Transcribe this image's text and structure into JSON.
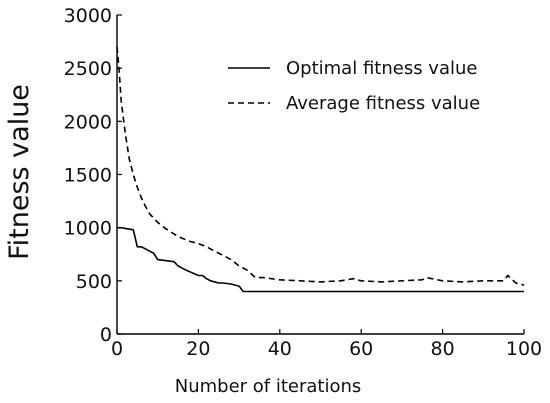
{
  "chart_data": {
    "type": "line",
    "xlabel": "Number of iterations",
    "ylabel": "Fitness value",
    "xlim": [
      0,
      100
    ],
    "ylim": [
      0,
      3000
    ],
    "xticks": [
      0,
      20,
      40,
      60,
      80,
      100
    ],
    "yticks": [
      0,
      500,
      1000,
      1500,
      2000,
      2500,
      3000
    ],
    "legend_position": "top-right",
    "grid": false,
    "series": [
      {
        "name": "Optimal fitness value",
        "style": "solid",
        "color": "#000000",
        "x": [
          0,
          1,
          4,
          5,
          6,
          7,
          9,
          10,
          14,
          15,
          16,
          17,
          20,
          21,
          22,
          23,
          25,
          26,
          28,
          29,
          30,
          31,
          100
        ],
        "y": [
          1000,
          1000,
          980,
          820,
          820,
          800,
          760,
          700,
          680,
          640,
          620,
          600,
          550,
          550,
          520,
          500,
          480,
          480,
          470,
          460,
          450,
          400,
          400
        ]
      },
      {
        "name": "Average fitness value",
        "style": "dashed",
        "color": "#000000",
        "x": [
          0,
          0.5,
          1,
          2,
          3,
          4,
          5,
          6,
          7,
          8,
          10,
          12,
          14,
          16,
          18,
          20,
          22,
          24,
          26,
          28,
          30,
          32,
          34,
          36,
          40,
          45,
          50,
          55,
          58,
          60,
          65,
          70,
          75,
          76,
          80,
          85,
          90,
          95,
          96,
          98,
          100
        ],
        "y": [
          2700,
          2500,
          2200,
          1900,
          1650,
          1500,
          1380,
          1280,
          1200,
          1130,
          1050,
          990,
          940,
          900,
          870,
          850,
          820,
          780,
          740,
          700,
          640,
          600,
          530,
          530,
          510,
          500,
          490,
          500,
          520,
          500,
          490,
          500,
          510,
          530,
          500,
          490,
          500,
          500,
          550,
          480,
          460
        ]
      }
    ]
  }
}
